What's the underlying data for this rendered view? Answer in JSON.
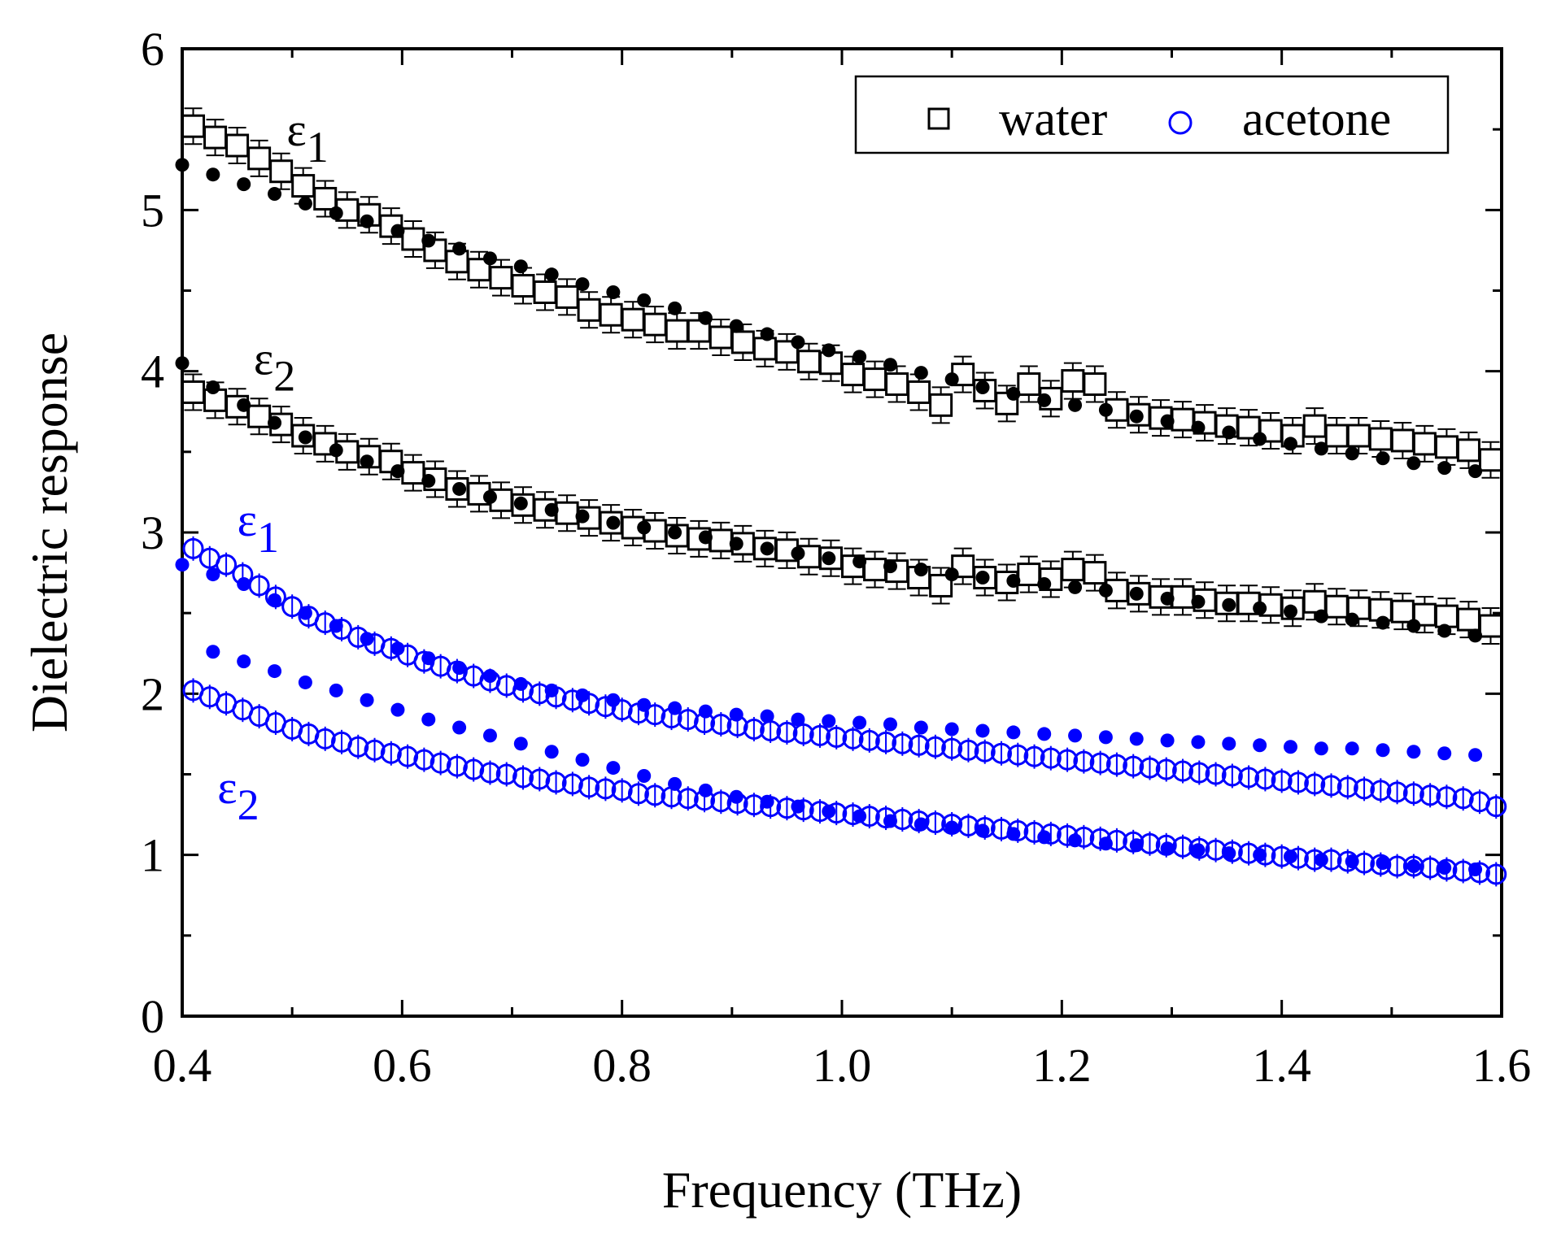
{
  "chart_data": {
    "type": "scatter",
    "title": "",
    "xlabel": "Frequency (THz)",
    "ylabel": "Dielectric response",
    "xlim": [
      0.4,
      1.6
    ],
    "ylim": [
      0,
      6
    ],
    "xticks": [
      "0.4",
      "0.6",
      "0.8",
      "1.0",
      "1.2",
      "1.4",
      "1.6"
    ],
    "yticks": [
      "0",
      "1",
      "2",
      "3",
      "4",
      "5",
      "6"
    ],
    "grid": false,
    "legend": {
      "position": "top-right",
      "entries": [
        {
          "label": "water",
          "marker": "open-square",
          "color": "#000000"
        },
        {
          "label": "acetone",
          "marker": "open-circle",
          "color": "#0000ff"
        }
      ]
    },
    "annotations": [
      {
        "symbol": "ε",
        "sub": "1",
        "color": "#000000",
        "x": 0.495,
        "y": 5.4
      },
      {
        "symbol": "ε",
        "sub": "2",
        "color": "#000000",
        "x": 0.465,
        "y": 3.98
      },
      {
        "symbol": "ε",
        "sub": "1",
        "color": "#0000ff",
        "x": 0.45,
        "y": 2.98
      },
      {
        "symbol": "ε",
        "sub": "2",
        "color": "#0000ff",
        "x": 0.432,
        "y": 1.32
      }
    ],
    "series": [
      {
        "name": "water ε1 (measured)",
        "marker": "open-square",
        "color": "#000000",
        "error_bars": true,
        "x": [
          0.41,
          0.43,
          0.45,
          0.47,
          0.49,
          0.51,
          0.53,
          0.55,
          0.57,
          0.59,
          0.61,
          0.63,
          0.65,
          0.67,
          0.69,
          0.71,
          0.73,
          0.75,
          0.77,
          0.79,
          0.81,
          0.83,
          0.85,
          0.87,
          0.89,
          0.91,
          0.93,
          0.95,
          0.97,
          0.99,
          1.01,
          1.03,
          1.05,
          1.07,
          1.09,
          1.11,
          1.13,
          1.15,
          1.17,
          1.19,
          1.21,
          1.23,
          1.25,
          1.27,
          1.29,
          1.31,
          1.33,
          1.35,
          1.37,
          1.39,
          1.41,
          1.43,
          1.45,
          1.47,
          1.49,
          1.51,
          1.53,
          1.55,
          1.57,
          1.59
        ],
        "y": [
          5.52,
          5.45,
          5.4,
          5.32,
          5.24,
          5.15,
          5.07,
          5.0,
          4.97,
          4.9,
          4.82,
          4.75,
          4.68,
          4.63,
          4.58,
          4.53,
          4.49,
          4.46,
          4.38,
          4.35,
          4.32,
          4.29,
          4.25,
          4.25,
          4.21,
          4.18,
          4.14,
          4.12,
          4.06,
          4.05,
          3.98,
          3.95,
          3.92,
          3.87,
          3.79,
          3.98,
          3.88,
          3.8,
          3.92,
          3.83,
          3.94,
          3.92,
          3.76,
          3.73,
          3.71,
          3.7,
          3.68,
          3.66,
          3.65,
          3.63,
          3.6,
          3.66,
          3.6,
          3.6,
          3.58,
          3.57,
          3.55,
          3.53,
          3.51,
          3.45
        ]
      },
      {
        "name": "water ε1 (model)",
        "marker": "filled-circle",
        "color": "#000000",
        "x": [
          0.4,
          0.428,
          0.456,
          0.484,
          0.512,
          0.54,
          0.568,
          0.596,
          0.624,
          0.652,
          0.68,
          0.708,
          0.736,
          0.764,
          0.792,
          0.82,
          0.848,
          0.876,
          0.904,
          0.932,
          0.96,
          0.988,
          1.016,
          1.044,
          1.072,
          1.1,
          1.128,
          1.156,
          1.184,
          1.212,
          1.24,
          1.268,
          1.296,
          1.324,
          1.352,
          1.38,
          1.408,
          1.436,
          1.464,
          1.492,
          1.52,
          1.548,
          1.576
        ],
        "y": [
          5.28,
          5.22,
          5.16,
          5.1,
          5.04,
          4.98,
          4.93,
          4.87,
          4.81,
          4.76,
          4.7,
          4.65,
          4.6,
          4.54,
          4.49,
          4.44,
          4.39,
          4.33,
          4.28,
          4.23,
          4.18,
          4.13,
          4.09,
          4.04,
          3.99,
          3.95,
          3.9,
          3.86,
          3.82,
          3.79,
          3.76,
          3.72,
          3.69,
          3.65,
          3.62,
          3.58,
          3.55,
          3.52,
          3.49,
          3.46,
          3.43,
          3.4,
          3.38
        ]
      },
      {
        "name": "water ε2 (measured)",
        "marker": "open-square",
        "color": "#000000",
        "error_bars": true,
        "x": [
          0.41,
          0.43,
          0.45,
          0.47,
          0.49,
          0.51,
          0.53,
          0.55,
          0.57,
          0.59,
          0.61,
          0.63,
          0.65,
          0.67,
          0.69,
          0.71,
          0.73,
          0.75,
          0.77,
          0.79,
          0.81,
          0.83,
          0.85,
          0.87,
          0.89,
          0.91,
          0.93,
          0.95,
          0.97,
          0.99,
          1.01,
          1.03,
          1.05,
          1.07,
          1.09,
          1.11,
          1.13,
          1.15,
          1.17,
          1.19,
          1.21,
          1.23,
          1.25,
          1.27,
          1.29,
          1.31,
          1.33,
          1.35,
          1.37,
          1.39,
          1.41,
          1.43,
          1.45,
          1.47,
          1.49,
          1.51,
          1.53,
          1.55,
          1.57,
          1.59
        ],
        "y": [
          3.87,
          3.82,
          3.78,
          3.72,
          3.67,
          3.6,
          3.55,
          3.5,
          3.47,
          3.44,
          3.37,
          3.33,
          3.27,
          3.24,
          3.2,
          3.17,
          3.14,
          3.12,
          3.09,
          3.06,
          3.03,
          3.01,
          2.98,
          2.96,
          2.95,
          2.93,
          2.9,
          2.89,
          2.85,
          2.84,
          2.79,
          2.77,
          2.76,
          2.72,
          2.67,
          2.79,
          2.72,
          2.69,
          2.74,
          2.71,
          2.77,
          2.75,
          2.64,
          2.62,
          2.6,
          2.6,
          2.58,
          2.56,
          2.56,
          2.55,
          2.53,
          2.57,
          2.54,
          2.53,
          2.52,
          2.51,
          2.49,
          2.48,
          2.46,
          2.42
        ]
      },
      {
        "name": "water ε2 (model)",
        "marker": "filled-circle",
        "color": "#000000",
        "x": [
          0.4,
          0.428,
          0.456,
          0.484,
          0.512,
          0.54,
          0.568,
          0.596,
          0.624,
          0.652,
          0.68,
          0.708,
          0.736,
          0.764,
          0.792,
          0.82,
          0.848,
          0.876,
          0.904,
          0.932,
          0.96,
          0.988,
          1.016,
          1.044,
          1.072,
          1.1,
          1.128,
          1.156,
          1.184,
          1.212,
          1.24,
          1.268,
          1.296,
          1.324,
          1.352,
          1.38,
          1.408,
          1.436,
          1.464,
          1.492,
          1.52,
          1.548,
          1.576
        ],
        "y": [
          4.05,
          3.9,
          3.79,
          3.68,
          3.59,
          3.51,
          3.44,
          3.38,
          3.32,
          3.27,
          3.22,
          3.18,
          3.14,
          3.1,
          3.06,
          3.03,
          3.0,
          2.97,
          2.93,
          2.9,
          2.87,
          2.84,
          2.82,
          2.79,
          2.77,
          2.74,
          2.72,
          2.7,
          2.68,
          2.66,
          2.64,
          2.62,
          2.59,
          2.57,
          2.55,
          2.53,
          2.51,
          2.48,
          2.46,
          2.44,
          2.42,
          2.39,
          2.36
        ]
      },
      {
        "name": "acetone ε1 (measured)",
        "marker": "open-circle",
        "color": "#0000ff",
        "error_bars": true,
        "x": [
          0.41,
          0.425,
          0.44,
          0.455,
          0.47,
          0.485,
          0.5,
          0.515,
          0.53,
          0.545,
          0.56,
          0.575,
          0.59,
          0.605,
          0.62,
          0.635,
          0.65,
          0.665,
          0.68,
          0.695,
          0.71,
          0.725,
          0.74,
          0.755,
          0.77,
          0.785,
          0.8,
          0.815,
          0.83,
          0.845,
          0.86,
          0.875,
          0.89,
          0.905,
          0.92,
          0.935,
          0.95,
          0.965,
          0.98,
          0.995,
          1.01,
          1.025,
          1.04,
          1.055,
          1.07,
          1.085,
          1.1,
          1.115,
          1.13,
          1.145,
          1.16,
          1.175,
          1.19,
          1.205,
          1.22,
          1.235,
          1.25,
          1.265,
          1.28,
          1.295,
          1.31,
          1.325,
          1.34,
          1.355,
          1.37,
          1.385,
          1.4,
          1.415,
          1.43,
          1.445,
          1.46,
          1.475,
          1.49,
          1.505,
          1.52,
          1.535,
          1.55,
          1.565,
          1.58,
          1.595
        ],
        "y": [
          2.9,
          2.84,
          2.8,
          2.74,
          2.67,
          2.6,
          2.54,
          2.48,
          2.44,
          2.4,
          2.35,
          2.31,
          2.28,
          2.24,
          2.2,
          2.17,
          2.14,
          2.11,
          2.08,
          2.05,
          2.02,
          2.0,
          1.98,
          1.96,
          1.94,
          1.92,
          1.9,
          1.88,
          1.87,
          1.85,
          1.84,
          1.82,
          1.81,
          1.8,
          1.78,
          1.77,
          1.76,
          1.75,
          1.74,
          1.73,
          1.72,
          1.71,
          1.7,
          1.69,
          1.68,
          1.67,
          1.66,
          1.65,
          1.64,
          1.63,
          1.62,
          1.61,
          1.6,
          1.59,
          1.58,
          1.57,
          1.56,
          1.55,
          1.54,
          1.53,
          1.52,
          1.51,
          1.5,
          1.49,
          1.48,
          1.47,
          1.46,
          1.45,
          1.44,
          1.43,
          1.42,
          1.41,
          1.4,
          1.39,
          1.38,
          1.37,
          1.36,
          1.35,
          1.33,
          1.3
        ]
      },
      {
        "name": "acetone ε1 (model)",
        "marker": "filled-circle",
        "color": "#0000ff",
        "x": [
          0.4,
          0.428,
          0.456,
          0.484,
          0.512,
          0.54,
          0.568,
          0.596,
          0.624,
          0.652,
          0.68,
          0.708,
          0.736,
          0.764,
          0.792,
          0.82,
          0.848,
          0.876,
          0.904,
          0.932,
          0.96,
          0.988,
          1.016,
          1.044,
          1.072,
          1.1,
          1.128,
          1.156,
          1.184,
          1.212,
          1.24,
          1.268,
          1.296,
          1.324,
          1.352,
          1.38,
          1.408,
          1.436,
          1.464,
          1.492,
          1.52,
          1.548,
          1.576
        ],
        "y": [
          2.8,
          2.74,
          2.68,
          2.58,
          2.5,
          2.42,
          2.34,
          2.28,
          2.22,
          2.16,
          2.11,
          2.06,
          2.02,
          1.99,
          1.96,
          1.93,
          1.91,
          1.89,
          1.87,
          1.86,
          1.84,
          1.83,
          1.82,
          1.81,
          1.79,
          1.78,
          1.77,
          1.76,
          1.75,
          1.74,
          1.73,
          1.72,
          1.71,
          1.7,
          1.69,
          1.68,
          1.67,
          1.66,
          1.66,
          1.65,
          1.64,
          1.63,
          1.62
        ]
      },
      {
        "name": "acetone ε2 (measured)",
        "marker": "open-circle",
        "color": "#0000ff",
        "error_bars": true,
        "x": [
          0.41,
          0.425,
          0.44,
          0.455,
          0.47,
          0.485,
          0.5,
          0.515,
          0.53,
          0.545,
          0.56,
          0.575,
          0.59,
          0.605,
          0.62,
          0.635,
          0.65,
          0.665,
          0.68,
          0.695,
          0.71,
          0.725,
          0.74,
          0.755,
          0.77,
          0.785,
          0.8,
          0.815,
          0.83,
          0.845,
          0.86,
          0.875,
          0.89,
          0.905,
          0.92,
          0.935,
          0.95,
          0.965,
          0.98,
          0.995,
          1.01,
          1.025,
          1.04,
          1.055,
          1.07,
          1.085,
          1.1,
          1.115,
          1.13,
          1.145,
          1.16,
          1.175,
          1.19,
          1.205,
          1.22,
          1.235,
          1.25,
          1.265,
          1.28,
          1.295,
          1.31,
          1.325,
          1.34,
          1.355,
          1.37,
          1.385,
          1.4,
          1.415,
          1.43,
          1.445,
          1.46,
          1.475,
          1.49,
          1.505,
          1.52,
          1.535,
          1.55,
          1.565,
          1.58,
          1.595
        ],
        "y": [
          2.02,
          1.98,
          1.94,
          1.9,
          1.86,
          1.82,
          1.78,
          1.75,
          1.72,
          1.7,
          1.67,
          1.65,
          1.63,
          1.61,
          1.59,
          1.57,
          1.55,
          1.53,
          1.51,
          1.5,
          1.48,
          1.47,
          1.45,
          1.44,
          1.42,
          1.41,
          1.4,
          1.38,
          1.37,
          1.36,
          1.35,
          1.34,
          1.33,
          1.32,
          1.31,
          1.3,
          1.29,
          1.28,
          1.27,
          1.26,
          1.25,
          1.24,
          1.23,
          1.22,
          1.21,
          1.2,
          1.19,
          1.18,
          1.17,
          1.16,
          1.15,
          1.14,
          1.13,
          1.12,
          1.11,
          1.1,
          1.09,
          1.08,
          1.07,
          1.06,
          1.05,
          1.04,
          1.03,
          1.02,
          1.01,
          1.0,
          0.99,
          0.98,
          0.97,
          0.97,
          0.96,
          0.95,
          0.94,
          0.93,
          0.93,
          0.92,
          0.91,
          0.9,
          0.89,
          0.88
        ]
      },
      {
        "name": "acetone ε2 (model)",
        "marker": "filled-circle",
        "color": "#0000ff",
        "x": [
          0.428,
          0.456,
          0.484,
          0.512,
          0.54,
          0.568,
          0.596,
          0.624,
          0.652,
          0.68,
          0.708,
          0.736,
          0.764,
          0.792,
          0.82,
          0.848,
          0.876,
          0.904,
          0.932,
          0.96,
          0.988,
          1.016,
          1.044,
          1.072,
          1.1,
          1.128,
          1.156,
          1.184,
          1.212,
          1.24,
          1.268,
          1.296,
          1.324,
          1.352,
          1.38,
          1.408,
          1.436,
          1.464,
          1.492,
          1.52,
          1.548,
          1.576
        ],
        "y": [
          2.26,
          2.2,
          2.14,
          2.07,
          2.02,
          1.96,
          1.9,
          1.84,
          1.79,
          1.74,
          1.69,
          1.64,
          1.59,
          1.54,
          1.49,
          1.44,
          1.4,
          1.36,
          1.33,
          1.3,
          1.27,
          1.24,
          1.21,
          1.19,
          1.17,
          1.15,
          1.13,
          1.11,
          1.09,
          1.07,
          1.06,
          1.04,
          1.03,
          1.01,
          1.0,
          0.99,
          0.97,
          0.96,
          0.95,
          0.93,
          0.92,
          0.91
        ]
      }
    ]
  }
}
